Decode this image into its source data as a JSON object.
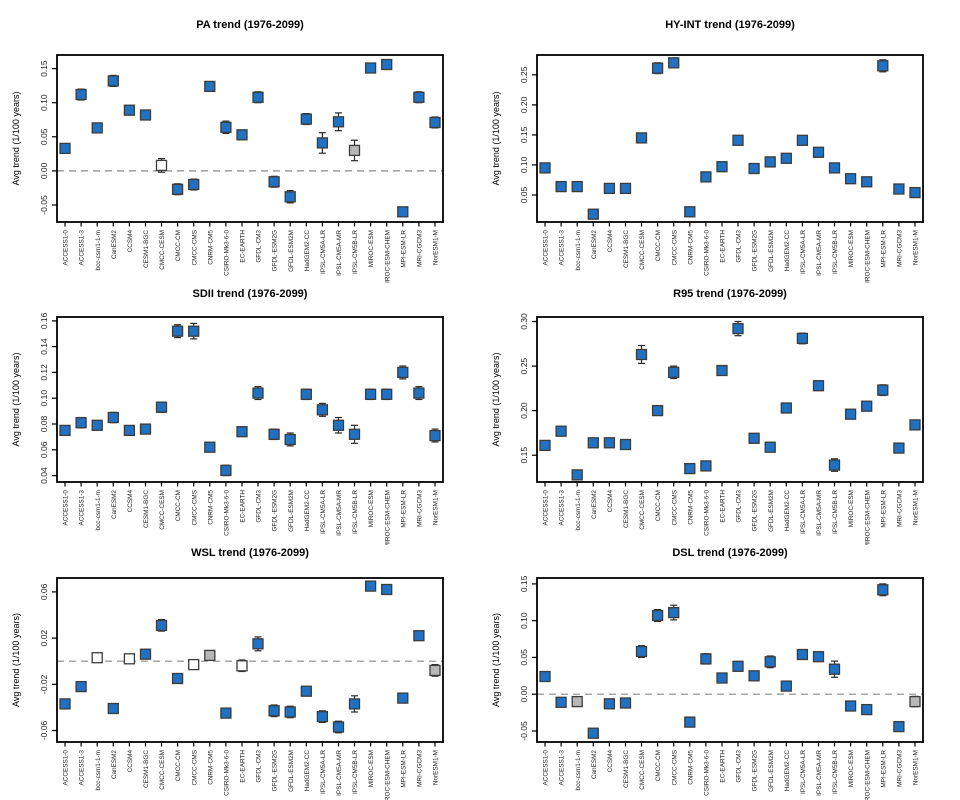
{
  "figure": {
    "description": "Six scatter panels of climate model average trends with error bars"
  },
  "chart_data": {
    "type": "scatter",
    "ylabel": "Avg trend (1/100 years)",
    "legend_position": "none",
    "grid": false,
    "categories": [
      "ACCESS1-0",
      "ACCESS1-3",
      "bcc-csm1-1-m",
      "CanESM2",
      "CCSM4",
      "CESM1-BGC",
      "CMCC-CESM",
      "CMCC-CM",
      "CMCC-CMS",
      "CNRM-CM5",
      "CSIRO-Mk3-6-0",
      "EC-EARTH",
      "GFDL-CM3",
      "GFDL-ESM2G",
      "GFDL-ESM2M",
      "HadGEM2-CC",
      "IPSL-CM5A-LR",
      "IPSL-CM5A-MR",
      "IPSL-CM5B-LR",
      "MIROC-ESM",
      "MIROC-ESM-CHEM",
      "MPI-ESM-LR",
      "MRI-CGCM3",
      "NorESM1-M"
    ],
    "colors": {
      "blue": "#2171c2",
      "white": "#ffffff",
      "gray": "#b8b8b8",
      "marker_border": "#3c3c3c",
      "error_bar": "#2a2a2a",
      "zero_line": "#8c8c8c",
      "axis": "#000000"
    },
    "panels": [
      {
        "id": "pa",
        "title": "PA trend (1976-2099)",
        "yticks": [
          "-0.05",
          "0.00",
          "0.05",
          "0.10",
          "0.15"
        ],
        "ylim": [
          -0.075,
          0.17
        ],
        "zero_line": true,
        "values": [
          0.033,
          0.112,
          0.063,
          0.132,
          0.089,
          0.082,
          0.008,
          -0.027,
          -0.02,
          0.124,
          0.064,
          0.053,
          0.108,
          -0.016,
          -0.038,
          0.076,
          0.041,
          0.072,
          0.03,
          0.151,
          0.156,
          -0.06,
          0.108,
          0.071
        ],
        "errors": [
          0.005,
          0.008,
          0.007,
          0.008,
          0.005,
          0.005,
          0.01,
          0.008,
          0.008,
          0.005,
          0.009,
          0.004,
          0.008,
          0.008,
          0.009,
          0.008,
          0.015,
          0.013,
          0.015,
          0.006,
          0.006,
          0.006,
          0.008,
          0.008
        ],
        "fills": [
          "blue",
          "blue",
          "blue",
          "blue",
          "blue",
          "blue",
          "white",
          "blue",
          "blue",
          "blue",
          "blue",
          "blue",
          "blue",
          "blue",
          "blue",
          "blue",
          "blue",
          "blue",
          "gray",
          "blue",
          "blue",
          "blue",
          "blue",
          "blue"
        ]
      },
      {
        "id": "hyint",
        "title": "HY-INT trend (1976-2099)",
        "yticks": [
          "0.05",
          "0.10",
          "0.15",
          "0.20",
          "0.25"
        ],
        "ylim": [
          0.005,
          0.283
        ],
        "zero_line": false,
        "values": [
          0.095,
          0.064,
          0.064,
          0.018,
          0.061,
          0.061,
          0.145,
          0.261,
          0.27,
          0.022,
          0.08,
          0.097,
          0.141,
          0.094,
          0.105,
          0.111,
          0.141,
          0.121,
          0.095,
          0.077,
          0.072,
          0.265,
          0.06,
          0.054
        ],
        "errors": [
          0.003,
          0.003,
          0.003,
          0.002,
          0.002,
          0.002,
          0.007,
          0.009,
          0.008,
          0.002,
          0.003,
          0.004,
          0.004,
          0.003,
          0.004,
          0.004,
          0.004,
          0.004,
          0.006,
          0.004,
          0.003,
          0.01,
          0.003,
          0.003
        ],
        "fills": [
          "blue",
          "blue",
          "blue",
          "blue",
          "blue",
          "blue",
          "blue",
          "blue",
          "blue",
          "blue",
          "blue",
          "blue",
          "blue",
          "blue",
          "blue",
          "blue",
          "blue",
          "blue",
          "blue",
          "blue",
          "blue",
          "blue",
          "blue",
          "blue"
        ]
      },
      {
        "id": "sdii",
        "title": "SDII trend (1976-2099)",
        "yticks": [
          "0.04",
          "0.06",
          "0.08",
          "0.10",
          "0.12",
          "0.14",
          "0.16"
        ],
        "ylim": [
          0.035,
          0.163
        ],
        "zero_line": false,
        "values": [
          0.075,
          0.081,
          0.079,
          0.085,
          0.075,
          0.076,
          0.093,
          0.152,
          0.152,
          0.062,
          0.044,
          0.074,
          0.104,
          0.072,
          0.068,
          0.103,
          0.091,
          0.079,
          0.072,
          0.103,
          0.103,
          0.12,
          0.104,
          0.071
        ],
        "errors": [
          0.003,
          0.004,
          0.003,
          0.004,
          0.003,
          0.003,
          0.004,
          0.005,
          0.006,
          0.003,
          0.004,
          0.003,
          0.005,
          0.004,
          0.005,
          0.004,
          0.005,
          0.006,
          0.007,
          0.004,
          0.004,
          0.005,
          0.005,
          0.005
        ],
        "fills": [
          "blue",
          "blue",
          "blue",
          "blue",
          "blue",
          "blue",
          "blue",
          "blue",
          "blue",
          "blue",
          "blue",
          "blue",
          "blue",
          "blue",
          "blue",
          "blue",
          "blue",
          "blue",
          "blue",
          "blue",
          "blue",
          "blue",
          "blue",
          "blue"
        ]
      },
      {
        "id": "r95",
        "title": "R95 trend (1976-2099)",
        "yticks": [
          "0.15",
          "0.20",
          "0.25",
          "0.30"
        ],
        "ylim": [
          0.12,
          0.305
        ],
        "zero_line": false,
        "values": [
          0.161,
          0.177,
          0.128,
          0.164,
          0.164,
          0.162,
          0.263,
          0.2,
          0.243,
          0.135,
          0.138,
          0.245,
          0.292,
          0.169,
          0.159,
          0.203,
          0.281,
          0.228,
          0.139,
          0.196,
          0.205,
          0.223,
          0.158,
          0.184
        ],
        "errors": [
          0.003,
          0.003,
          0.003,
          0.003,
          0.003,
          0.005,
          0.01,
          0.004,
          0.007,
          0.003,
          0.004,
          0.005,
          0.008,
          0.004,
          0.005,
          0.004,
          0.006,
          0.005,
          0.007,
          0.004,
          0.004,
          0.006,
          0.004,
          0.005
        ],
        "fills": [
          "blue",
          "blue",
          "blue",
          "blue",
          "blue",
          "blue",
          "blue",
          "blue",
          "blue",
          "blue",
          "blue",
          "blue",
          "blue",
          "blue",
          "blue",
          "blue",
          "blue",
          "blue",
          "blue",
          "blue",
          "blue",
          "blue",
          "blue",
          "blue"
        ]
      },
      {
        "id": "wsl",
        "title": "WSL trend (1976-2099)",
        "yticks": [
          "-0.06",
          "-0.02",
          "0.02",
          "0.06"
        ],
        "ylim": [
          -0.07,
          0.072
        ],
        "zero_line": true,
        "values": [
          -0.037,
          -0.022,
          0.003,
          -0.041,
          0.002,
          0.006,
          0.031,
          -0.015,
          -0.003,
          0.005,
          -0.045,
          -0.004,
          0.015,
          -0.043,
          -0.044,
          -0.026,
          -0.048,
          -0.057,
          -0.037,
          0.065,
          0.062,
          -0.032,
          0.022,
          -0.008
        ],
        "errors": [
          0.003,
          0.003,
          0.002,
          0.003,
          0.002,
          0.002,
          0.005,
          0.003,
          0.003,
          0.003,
          0.004,
          0.005,
          0.006,
          0.005,
          0.005,
          0.004,
          0.005,
          0.005,
          0.007,
          0.004,
          0.004,
          0.003,
          0.003,
          0.005
        ],
        "fills": [
          "blue",
          "blue",
          "white",
          "blue",
          "white",
          "blue",
          "blue",
          "blue",
          "white",
          "gray",
          "blue",
          "white",
          "blue",
          "blue",
          "blue",
          "blue",
          "blue",
          "blue",
          "blue",
          "blue",
          "blue",
          "blue",
          "blue",
          "gray"
        ]
      },
      {
        "id": "dsl",
        "title": "DSL trend (1976-2099)",
        "yticks": [
          "-0.05",
          "0.00",
          "0.05",
          "0.10",
          "0.15"
        ],
        "ylim": [
          -0.065,
          0.158
        ],
        "zero_line": true,
        "values": [
          0.024,
          -0.011,
          -0.01,
          -0.053,
          -0.013,
          -0.012,
          0.058,
          0.107,
          0.111,
          -0.038,
          0.048,
          0.022,
          0.038,
          0.025,
          0.044,
          0.011,
          0.054,
          0.051,
          0.034,
          -0.016,
          -0.021,
          0.142,
          -0.044,
          -0.01
        ],
        "errors": [
          0.005,
          0.004,
          0.006,
          0.004,
          0.003,
          0.003,
          0.008,
          0.008,
          0.01,
          0.004,
          0.007,
          0.005,
          0.005,
          0.006,
          0.008,
          0.005,
          0.005,
          0.005,
          0.011,
          0.004,
          0.004,
          0.008,
          0.004,
          0.007
        ],
        "fills": [
          "blue",
          "blue",
          "gray",
          "blue",
          "blue",
          "blue",
          "blue",
          "blue",
          "blue",
          "blue",
          "blue",
          "blue",
          "blue",
          "blue",
          "blue",
          "blue",
          "blue",
          "blue",
          "blue",
          "blue",
          "blue",
          "blue",
          "blue",
          "gray"
        ]
      }
    ]
  }
}
